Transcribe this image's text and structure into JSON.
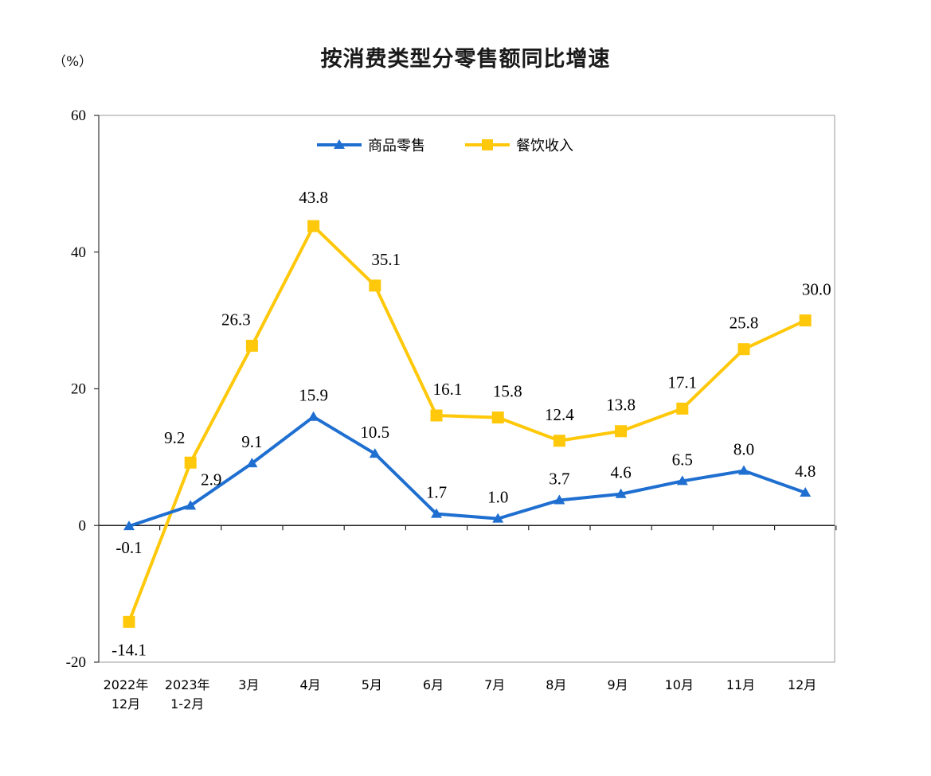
{
  "unit": "（%）",
  "chart_data": {
    "type": "line",
    "title": "按消费类型分零售额同比增速",
    "xlabel": "",
    "ylabel": "",
    "ylim": [
      -20,
      60
    ],
    "yticks": [
      -20,
      0,
      20,
      40,
      60
    ],
    "grid": false,
    "legend_position": "top-center",
    "categories": [
      [
        "2022年",
        "12月"
      ],
      [
        "2023年",
        "1-2月"
      ],
      [
        "3月"
      ],
      [
        "4月"
      ],
      [
        "5月"
      ],
      [
        "6月"
      ],
      [
        "7月"
      ],
      [
        "8月"
      ],
      [
        "9月"
      ],
      [
        "10月"
      ],
      [
        "11月"
      ],
      [
        "12月"
      ]
    ],
    "series": [
      {
        "name": "商品零售",
        "color": "#1f6fd1",
        "marker": "triangle",
        "values": [
          -0.1,
          2.9,
          9.1,
          15.9,
          10.5,
          1.7,
          1.0,
          3.7,
          4.6,
          6.5,
          8.0,
          4.8
        ],
        "labels": [
          "-0.1",
          "2.9",
          "9.1",
          "15.9",
          "10.5",
          "1.7",
          "1.0",
          "3.7",
          "4.6",
          "6.5",
          "8.0",
          "4.8"
        ]
      },
      {
        "name": "餐饮收入",
        "color": "#ffc80a",
        "marker": "square",
        "values": [
          -14.1,
          9.2,
          26.3,
          43.8,
          35.1,
          16.1,
          15.8,
          12.4,
          13.8,
          17.1,
          25.8,
          30.0
        ],
        "labels": [
          "-14.1",
          "9.2",
          "26.3",
          "43.8",
          "35.1",
          "16.1",
          "15.8",
          "12.4",
          "13.8",
          "17.1",
          "25.8",
          "30.0"
        ]
      }
    ]
  }
}
